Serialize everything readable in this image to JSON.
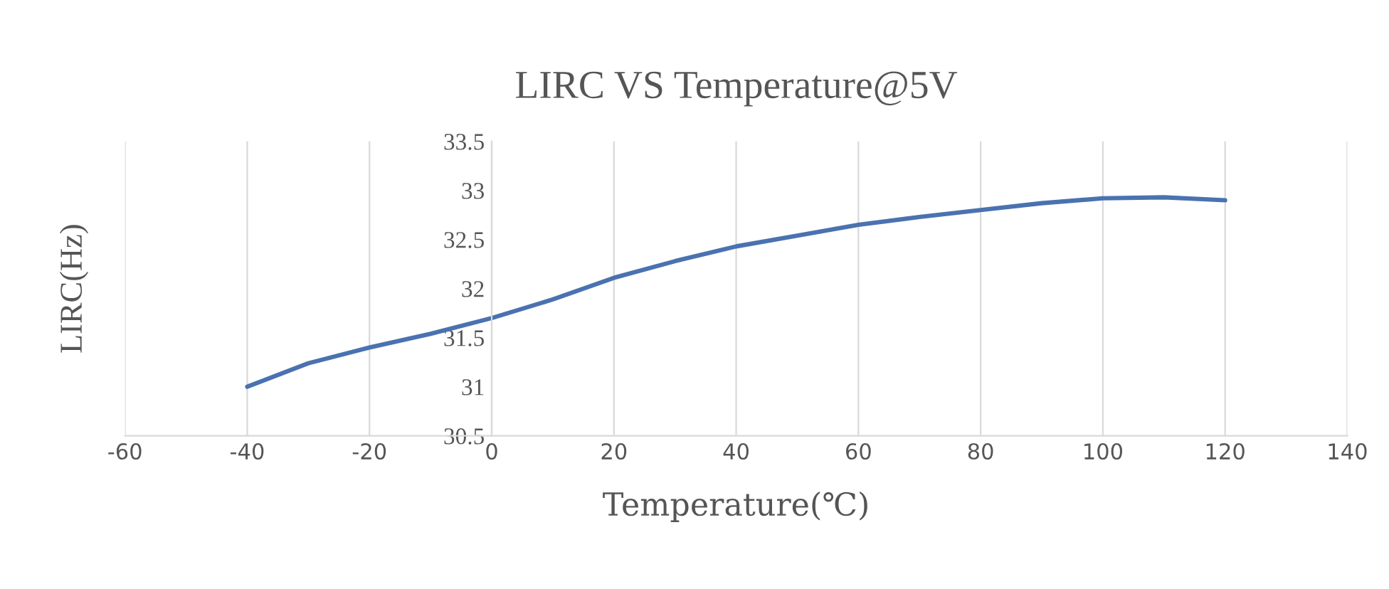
{
  "chart_data": {
    "type": "line",
    "title": "LIRC VS Temperature@5V",
    "xlabel": "Temperature(℃)",
    "ylabel": "LIRC(Hz)",
    "x": [
      -40,
      -30,
      -20,
      -10,
      0,
      10,
      20,
      30,
      40,
      50,
      60,
      70,
      80,
      90,
      100,
      110,
      120
    ],
    "series": [
      {
        "color": "#4a72b0",
        "values": [
          31.0,
          31.24,
          31.4,
          31.54,
          31.7,
          31.89,
          32.11,
          32.28,
          32.43,
          32.54,
          32.65,
          32.73,
          32.8,
          32.87,
          32.92,
          32.93,
          32.9
        ]
      }
    ],
    "xlim": [
      -60,
      140
    ],
    "xticks": [
      -60,
      -40,
      -20,
      0,
      20,
      40,
      60,
      80,
      100,
      120,
      140
    ],
    "ylim": [
      30.5,
      33.5
    ],
    "yticks": [
      30.5,
      31,
      31.5,
      32,
      32.5,
      33,
      33.5
    ],
    "grid": "x",
    "marker": "none",
    "line_style": "solid"
  }
}
